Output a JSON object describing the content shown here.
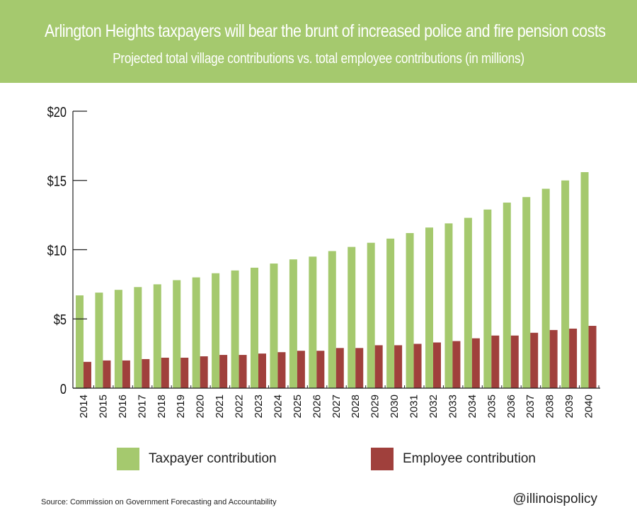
{
  "header": {
    "title": "Arlington Heights taxpayers will bear the brunt of increased police and fire pension costs",
    "subtitle": "Projected total village contributions vs. total employee contributions (in millions)"
  },
  "colors": {
    "header_bg": "#a5c96e",
    "taxpayer": "#a5c96e",
    "employee": "#a0403c",
    "axis": "#222222"
  },
  "chart_data": {
    "type": "bar",
    "categories": [
      "2014",
      "2015",
      "2016",
      "2017",
      "2018",
      "2019",
      "2020",
      "2021",
      "2022",
      "2023",
      "2024",
      "2025",
      "2026",
      "2027",
      "2028",
      "2029",
      "2030",
      "2031",
      "2032",
      "2033",
      "2034",
      "2035",
      "2036",
      "2037",
      "2038",
      "2039",
      "2040"
    ],
    "series": [
      {
        "name": "Taxpayer contribution",
        "values": [
          6.7,
          6.9,
          7.1,
          7.3,
          7.5,
          7.8,
          8.0,
          8.3,
          8.5,
          8.7,
          9.0,
          9.3,
          9.5,
          9.9,
          10.2,
          10.5,
          10.8,
          11.2,
          11.6,
          11.9,
          12.3,
          12.9,
          13.4,
          13.8,
          14.4,
          15.0,
          15.6
        ]
      },
      {
        "name": "Employee contribution",
        "values": [
          1.9,
          2.0,
          2.0,
          2.1,
          2.2,
          2.2,
          2.3,
          2.4,
          2.4,
          2.5,
          2.6,
          2.7,
          2.7,
          2.9,
          2.9,
          3.1,
          3.1,
          3.2,
          3.3,
          3.4,
          3.6,
          3.8,
          3.8,
          4.0,
          4.2,
          4.3,
          4.5
        ]
      }
    ],
    "y_ticks": [
      "0",
      "$5",
      "$10",
      "$15",
      "$20"
    ],
    "y_tick_values": [
      0,
      5,
      10,
      15,
      20
    ],
    "ylim": [
      0,
      20
    ],
    "xlabel": "",
    "ylabel": "",
    "grid": false,
    "legend_position": "bottom"
  },
  "footer": {
    "source": "Source: Commission on Government Forecasting and Accountability",
    "handle": "@illinoispolicy"
  }
}
